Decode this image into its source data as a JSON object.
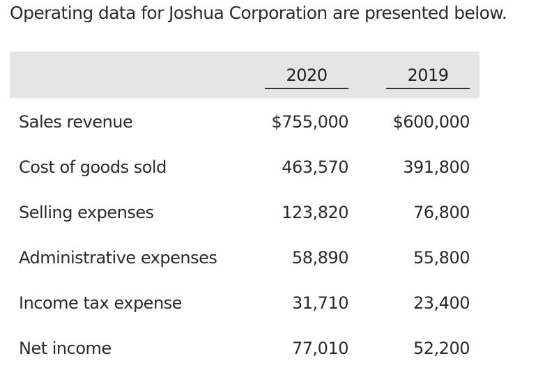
{
  "intro": "Operating data for Joshua Corporation are presented below.",
  "table": {
    "headers": [
      "2020",
      "2019"
    ],
    "rows": [
      {
        "label": "Sales revenue",
        "v2020": "$755,000",
        "v2019": "$600,000"
      },
      {
        "label": "Cost of goods sold",
        "v2020": "463,570",
        "v2019": "391,800"
      },
      {
        "label": "Selling expenses",
        "v2020": "123,820",
        "v2019": "76,800"
      },
      {
        "label": "Administrative expenses",
        "v2020": "58,890",
        "v2019": "55,800"
      },
      {
        "label": "Income tax expense",
        "v2020": "31,710",
        "v2019": "23,400"
      },
      {
        "label": "Net income",
        "v2020": "77,010",
        "v2019": "52,200"
      }
    ]
  }
}
